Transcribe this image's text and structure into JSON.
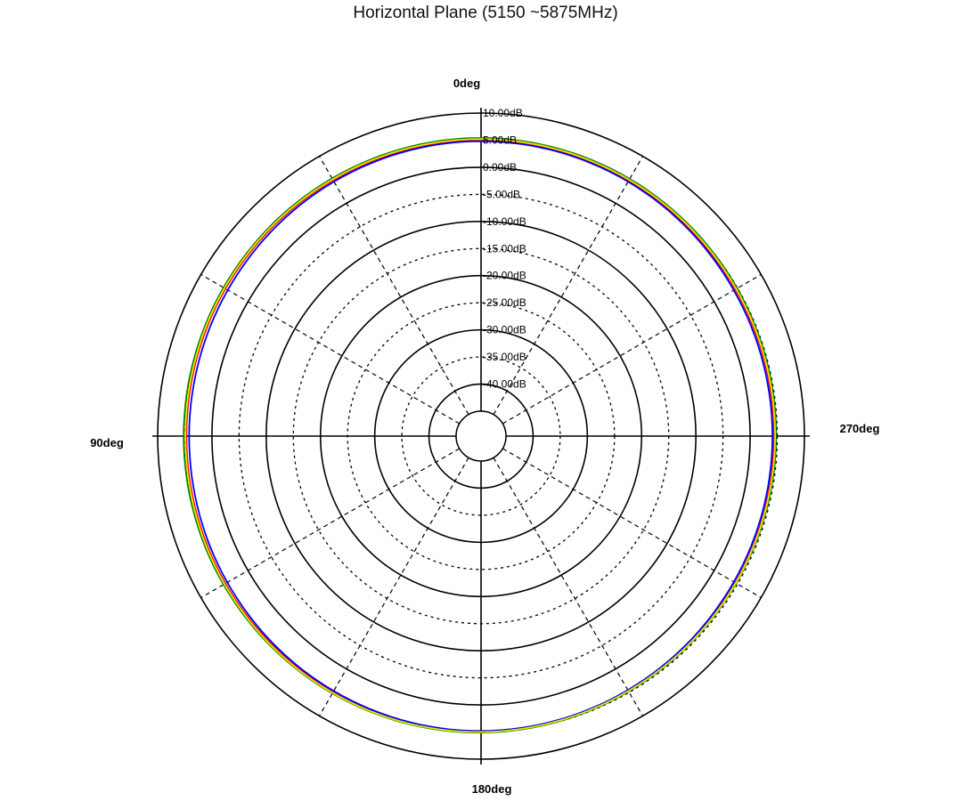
{
  "chart_data": {
    "type": "polar",
    "title": "Horizontal Plane (5150 ~5875MHz)",
    "angle_labels": [
      "0deg",
      "90deg",
      "180deg",
      "270deg"
    ],
    "radial_labels": [
      "10.00dB",
      "5.00dB",
      "0.00dB",
      "-5.00dB",
      "-10.00dB",
      "-15.00dB",
      "-20.00dB",
      "-25.00dB",
      "-30.00dB",
      "-35.00dB",
      "-40.00dB"
    ],
    "radial_range_db": [
      -45,
      10
    ],
    "grid": true,
    "angle_direction": "counter-clockwise from top",
    "series": [
      {
        "color": "#000000",
        "angles_deg": [
          0,
          30,
          60,
          90,
          120,
          150,
          180,
          210,
          240,
          270,
          300,
          330
        ],
        "gain_db": [
          5.1,
          5.0,
          4.9,
          4.8,
          4.9,
          5.0,
          4.9,
          4.6,
          4.5,
          4.4,
          4.6,
          4.9
        ]
      },
      {
        "color": "#ff0000",
        "angles_deg": [
          0,
          30,
          60,
          90,
          120,
          150,
          180,
          210,
          240,
          270,
          300,
          330
        ],
        "gain_db": [
          5.0,
          4.9,
          4.8,
          4.7,
          4.8,
          4.9,
          4.8,
          4.6,
          4.5,
          4.4,
          4.5,
          4.8
        ]
      },
      {
        "color": "#008000",
        "angles_deg": [
          0,
          30,
          60,
          90,
          120,
          150,
          180,
          210,
          240,
          270,
          300,
          330
        ],
        "gain_db": [
          5.4,
          5.3,
          5.2,
          5.2,
          5.2,
          5.2,
          5.1,
          4.8,
          4.7,
          4.8,
          4.9,
          5.2
        ]
      },
      {
        "color": "#0000ff",
        "angles_deg": [
          0,
          30,
          60,
          90,
          120,
          150,
          180,
          210,
          240,
          270,
          300,
          330
        ],
        "gain_db": [
          4.8,
          4.6,
          4.3,
          4.2,
          4.4,
          4.7,
          4.8,
          4.5,
          4.2,
          4.1,
          4.2,
          4.6
        ]
      },
      {
        "color": "#e8e800",
        "angles_deg": [
          0,
          30,
          60,
          90,
          120,
          150,
          180,
          210,
          240,
          270,
          300,
          330
        ],
        "gain_db": [
          5.2,
          5.1,
          5.0,
          4.9,
          5.0,
          5.1,
          5.0,
          4.7,
          4.6,
          4.6,
          4.7,
          5.0
        ]
      }
    ]
  }
}
